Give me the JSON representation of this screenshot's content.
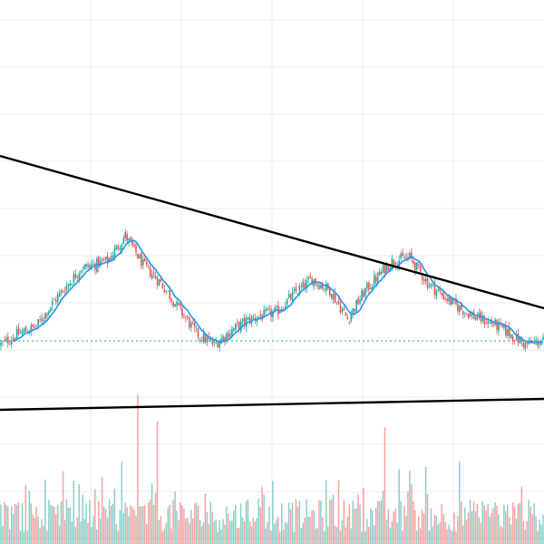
{
  "chart_data": {
    "type": "candlestick",
    "title": "",
    "xlabel": "",
    "ylabel": "",
    "grid": true,
    "legend": "none",
    "colors": {
      "up": "#26a69a",
      "down": "#ef5350",
      "ma": "#2196f3",
      "trendline": "#000000",
      "reference_line": "#26a69a",
      "grid": "#eeeeee",
      "volume_up": "#26a69a",
      "volume_down": "#ef5350"
    },
    "price_range": [
      0,
      100
    ],
    "price_anchors": [
      [
        0,
        30
      ],
      [
        10,
        33
      ],
      [
        20,
        35
      ],
      [
        30,
        42
      ],
      [
        45,
        51
      ],
      [
        60,
        53
      ],
      [
        70,
        60
      ],
      [
        80,
        52
      ],
      [
        90,
        47
      ],
      [
        100,
        40
      ],
      [
        110,
        33
      ],
      [
        120,
        30
      ],
      [
        130,
        34
      ],
      [
        140,
        37
      ],
      [
        155,
        39
      ],
      [
        165,
        44
      ],
      [
        175,
        48
      ],
      [
        185,
        45
      ],
      [
        195,
        37
      ],
      [
        205,
        45
      ],
      [
        220,
        53
      ],
      [
        230,
        54
      ],
      [
        240,
        47
      ],
      [
        255,
        41
      ],
      [
        265,
        38
      ],
      [
        280,
        35
      ],
      [
        295,
        30
      ],
      [
        305,
        31
      ]
    ],
    "reference_level": 31,
    "trendlines": [
      {
        "name": "upper",
        "start": [
          0,
          82
        ],
        "end": [
          305,
          40
        ]
      },
      {
        "name": "lower",
        "start": [
          0,
          12
        ],
        "end": [
          305,
          15
        ]
      }
    ],
    "volume": {
      "range": [
        0,
        100
      ],
      "spikes": [
        [
          77,
          100
        ],
        [
          88,
          82
        ],
        [
          68,
          55
        ],
        [
          216,
          78
        ],
        [
          258,
          55
        ],
        [
          224,
          50
        ]
      ]
    }
  }
}
